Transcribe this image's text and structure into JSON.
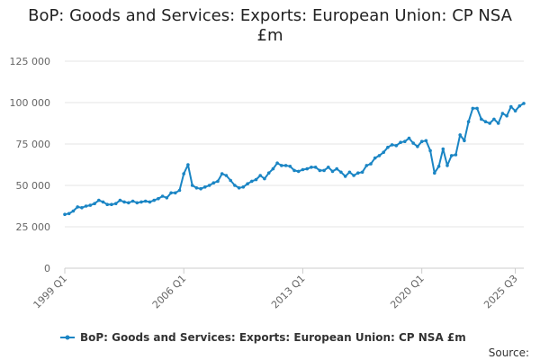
{
  "chart_data": {
    "type": "line",
    "title_lines": [
      "BoP: Goods and Services: Exports: European Union: CP NSA",
      "£m"
    ],
    "xlabel": "",
    "ylabel": "",
    "ylim": [
      0,
      125000
    ],
    "y_ticks": [
      0,
      25000,
      50000,
      75000,
      100000,
      125000
    ],
    "y_tick_labels": [
      "0",
      "25 000",
      "50 000",
      "75 000",
      "100 000",
      "125 000"
    ],
    "x_ticks": [
      "1999 Q1",
      "2006 Q1",
      "2013 Q1",
      "2020 Q1",
      "2025 Q3"
    ],
    "grid": "horizontal",
    "series": [
      {
        "name": "BoP: Goods and Services: Exports: European Union: CP NSA £m",
        "color": "#1a85c4",
        "values": [
          32500,
          33000,
          34500,
          37000,
          36500,
          37500,
          38000,
          39000,
          41000,
          40000,
          38500,
          38500,
          39000,
          41000,
          40000,
          39500,
          40500,
          39500,
          40000,
          40500,
          40000,
          41000,
          42000,
          43500,
          42500,
          45500,
          45500,
          47000,
          57000,
          62500,
          50000,
          48500,
          48000,
          49000,
          50000,
          51500,
          52500,
          57000,
          56000,
          53000,
          50000,
          48500,
          49000,
          51000,
          52500,
          53500,
          56000,
          54000,
          57500,
          60000,
          63500,
          62000,
          62000,
          61500,
          59000,
          58500,
          59500,
          60000,
          61000,
          61000,
          59000,
          59000,
          61000,
          58500,
          60000,
          58000,
          55500,
          58000,
          56000,
          57500,
          58000,
          62000,
          63000,
          66500,
          68000,
          70000,
          73000,
          74500,
          74000,
          76000,
          76500,
          78500,
          75500,
          73500,
          76500,
          77000,
          71000,
          57500,
          61500,
          72000,
          62000,
          68000,
          68500,
          80500,
          77000,
          88500,
          96500,
          96500,
          90000,
          88500,
          87500,
          90000,
          87500,
          93500,
          92000,
          97500,
          95000,
          98000,
          99500
        ]
      }
    ],
    "legend": "bottom"
  },
  "source_label": "Source:"
}
